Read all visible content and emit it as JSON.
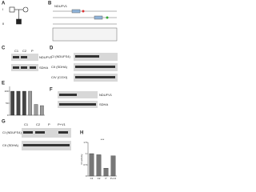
{
  "figure": {
    "a": {
      "letter": "A",
      "generations": [
        "I",
        "II"
      ]
    },
    "b": {
      "letter": "B",
      "gene": "NDUFV1"
    },
    "c": {
      "letter": "C",
      "lanes": [
        "C1",
        "C2",
        "P"
      ],
      "rows": [
        "NDUFV1",
        "SDHA"
      ]
    },
    "d": {
      "letter": "D",
      "rows": [
        "CI (NDUFS4)",
        "CII (SDHA)",
        "CIV (COXI)"
      ]
    },
    "e": {
      "letter": "E",
      "values": [
        100,
        100,
        100,
        100,
        45,
        40
      ],
      "colors": [
        "#444444",
        "#444444",
        "#444444",
        "#999999",
        "#999999",
        "#999999"
      ],
      "ylim": [
        0,
        120
      ],
      "yticks": [
        0,
        50,
        100
      ]
    },
    "f": {
      "letter": "F",
      "rows": [
        "NDUFV1",
        "SDHA"
      ]
    },
    "g": {
      "letter": "G",
      "lanes": [
        "C1",
        "C2",
        "P",
        "P+V1"
      ],
      "rows": [
        "CI (NDUFS4)",
        "CII (SDHA)"
      ]
    },
    "h": {
      "letter": "H",
      "categories": [
        "C1",
        "C2",
        "P",
        "P+V1"
      ],
      "values": [
        1.0,
        0.95,
        0.35,
        0.9
      ],
      "ylim": [
        0,
        1.5
      ],
      "yticks": [
        0,
        0.5,
        1,
        1.5
      ],
      "ylabel": "CI activity",
      "annotation": "***"
    }
  }
}
